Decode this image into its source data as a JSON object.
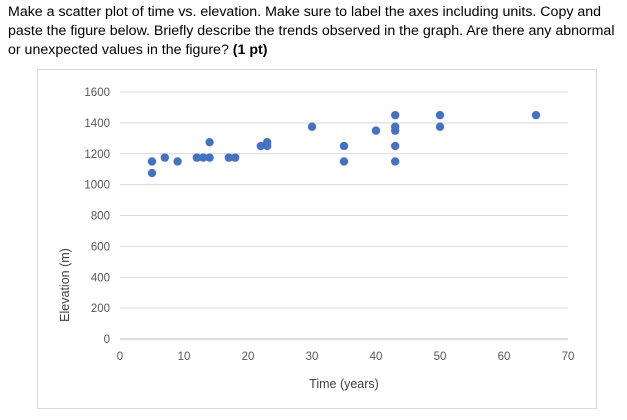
{
  "question": {
    "text": "Make a scatter plot of time vs. elevation. Make sure to label the axes including units. Copy and paste the figure below. Briefly describe the trends observed in the graph. Are there any abnormal or unexpected values in the figure?",
    "points": "(1 pt)"
  },
  "chart_data": {
    "type": "scatter",
    "xlabel": "Time (years)",
    "ylabel": "Elevation (m)",
    "xlim": [
      0,
      70
    ],
    "ylim": [
      0,
      1600
    ],
    "x_ticks": [
      0,
      10,
      20,
      30,
      40,
      50,
      60,
      70
    ],
    "y_ticks": [
      0,
      200,
      400,
      600,
      800,
      1000,
      1200,
      1400,
      1600
    ],
    "grid": "horizontal",
    "legend": "none",
    "marker_color": "#4472C4",
    "points": [
      {
        "x": 5,
        "y": 1150
      },
      {
        "x": 5,
        "y": 1075
      },
      {
        "x": 7,
        "y": 1175
      },
      {
        "x": 9,
        "y": 1150
      },
      {
        "x": 12,
        "y": 1175
      },
      {
        "x": 13,
        "y": 1175
      },
      {
        "x": 14,
        "y": 1175
      },
      {
        "x": 14,
        "y": 1275
      },
      {
        "x": 17,
        "y": 1175
      },
      {
        "x": 18,
        "y": 1175
      },
      {
        "x": 22,
        "y": 1250
      },
      {
        "x": 23,
        "y": 1250
      },
      {
        "x": 23,
        "y": 1275
      },
      {
        "x": 30,
        "y": 1375
      },
      {
        "x": 35,
        "y": 1250
      },
      {
        "x": 35,
        "y": 1150
      },
      {
        "x": 40,
        "y": 1350
      },
      {
        "x": 43,
        "y": 1450
      },
      {
        "x": 43,
        "y": 1375
      },
      {
        "x": 43,
        "y": 1350
      },
      {
        "x": 43,
        "y": 1250
      },
      {
        "x": 43,
        "y": 1150
      },
      {
        "x": 50,
        "y": 1450
      },
      {
        "x": 50,
        "y": 1375
      },
      {
        "x": 65,
        "y": 1450
      }
    ]
  }
}
